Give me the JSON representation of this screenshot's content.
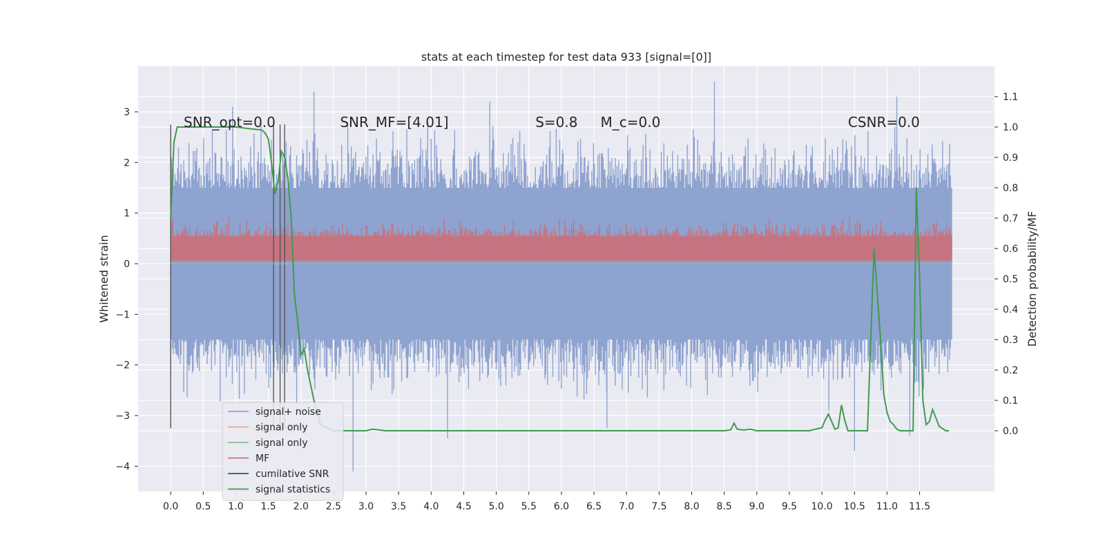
{
  "chart_data": {
    "type": "line",
    "title": "stats at each timestep for test data 933 [signal=[0]]",
    "xlabel": "",
    "ylabel_left": "Whitened strain",
    "ylabel_right": "Detection probability/MF",
    "xlim": [
      -0.5,
      12.65
    ],
    "ylim_left": [
      -4.5,
      3.9
    ],
    "ylim_right": [
      -0.2,
      1.2
    ],
    "x_ticks": [
      "0.0",
      "0.5",
      "1.0",
      "1.5",
      "2.0",
      "2.5",
      "3.0",
      "3.5",
      "4.0",
      "4.5",
      "5.0",
      "5.5",
      "6.0",
      "6.5",
      "7.0",
      "7.5",
      "8.0",
      "8.5",
      "9.0",
      "9.5",
      "10.0",
      "10.5",
      "11.0",
      "11.5"
    ],
    "y_ticks_left": [
      "3",
      "2",
      "1",
      "0",
      "−1",
      "−2",
      "−3",
      "−4"
    ],
    "y_ticks_right": [
      "1.1",
      "1.0",
      "0.9",
      "0.8",
      "0.7",
      "0.6",
      "0.5",
      "0.4",
      "0.3",
      "0.2",
      "0.1",
      "0.0"
    ],
    "grid": true,
    "annotations": [
      {
        "text": "SNR_opt=0.0",
        "x": 0.2
      },
      {
        "text": "SNR_MF=[4.01]",
        "x": 2.6
      },
      {
        "text": "S=0.8",
        "x": 5.6
      },
      {
        "text": "M_c=0.0",
        "x": 6.6
      },
      {
        "text": "CSNR=0.0",
        "x": 10.4
      }
    ],
    "legend": {
      "placement": "lower-left",
      "entries": [
        {
          "label": "signal+ noise",
          "color": "#8ea3cf"
        },
        {
          "label": "signal only",
          "color": "#e5a68c"
        },
        {
          "label": "signal only",
          "color": "#86c18e"
        },
        {
          "label": "MF",
          "color": "#c8727e"
        },
        {
          "label": "cumilative SNR",
          "color": "#2e4d9b"
        },
        {
          "label": "signal statistics",
          "color": "#3f9a4f"
        }
      ]
    },
    "series": [
      {
        "name": "signal+ noise",
        "axis": "left",
        "x_range": [
          0,
          12.0
        ],
        "envelope": [
          -1.5,
          1.5
        ],
        "extremes_min": -4.1,
        "extremes_max": 3.6,
        "color": "#8ea3cf"
      },
      {
        "name": "MF",
        "axis": "left",
        "x_range": [
          0,
          12.0
        ],
        "envelope": [
          0.05,
          0.75
        ],
        "color": "#c8727e"
      },
      {
        "name": "signal only",
        "axis": "left",
        "x_range": [
          0,
          12.0
        ],
        "values_constant": 0.0,
        "color": "#86c18e"
      },
      {
        "name": "signal statistics",
        "axis": "right",
        "color": "#3f9a4f",
        "x": [
          0.0,
          0.05,
          0.1,
          0.2,
          0.4,
          0.6,
          0.8,
          1.0,
          1.2,
          1.4,
          1.45,
          1.5,
          1.55,
          1.6,
          1.65,
          1.7,
          1.75,
          1.8,
          1.85,
          1.9,
          1.95,
          2.0,
          2.05,
          2.1,
          2.2,
          2.3,
          2.5,
          2.8,
          3.0,
          3.1,
          3.3,
          4.0,
          5.0,
          6.0,
          7.0,
          8.0,
          8.5,
          8.6,
          8.65,
          8.7,
          8.8,
          8.9,
          9.0,
          9.5,
          9.8,
          9.9,
          10.0,
          10.05,
          10.1,
          10.15,
          10.2,
          10.25,
          10.3,
          10.35,
          10.4,
          10.45,
          10.5,
          10.6,
          10.7,
          10.75,
          10.8,
          10.85,
          10.9,
          10.95,
          11.0,
          11.05,
          11.1,
          11.15,
          11.2,
          11.3,
          11.4,
          11.45,
          11.5,
          11.55,
          11.6,
          11.65,
          11.7,
          11.8,
          11.9,
          11.95
        ],
        "y": [
          0.7,
          0.95,
          1.0,
          1.0,
          1.0,
          1.0,
          1.0,
          1.0,
          0.995,
          0.99,
          0.98,
          0.96,
          0.88,
          0.78,
          0.82,
          0.92,
          0.9,
          0.83,
          0.7,
          0.45,
          0.36,
          0.25,
          0.27,
          0.2,
          0.1,
          0.02,
          0.0,
          0.0,
          0.0,
          0.005,
          0.0,
          0.0,
          0.0,
          0.0,
          0.0,
          0.0,
          0.0,
          0.003,
          0.025,
          0.005,
          0.002,
          0.005,
          0.0,
          0.0,
          0.0,
          0.005,
          0.01,
          0.035,
          0.055,
          0.03,
          0.005,
          0.01,
          0.085,
          0.035,
          0.0,
          0.0,
          0.0,
          0.0,
          0.0,
          0.3,
          0.6,
          0.45,
          0.3,
          0.12,
          0.06,
          0.03,
          0.02,
          0.005,
          0.0,
          0.0,
          0.0,
          0.8,
          0.5,
          0.1,
          0.02,
          0.03,
          0.07,
          0.015,
          0.0,
          0.0
        ]
      }
    ],
    "vertical_markers": [
      0.0,
      1.58,
      1.68,
      1.75
    ]
  }
}
